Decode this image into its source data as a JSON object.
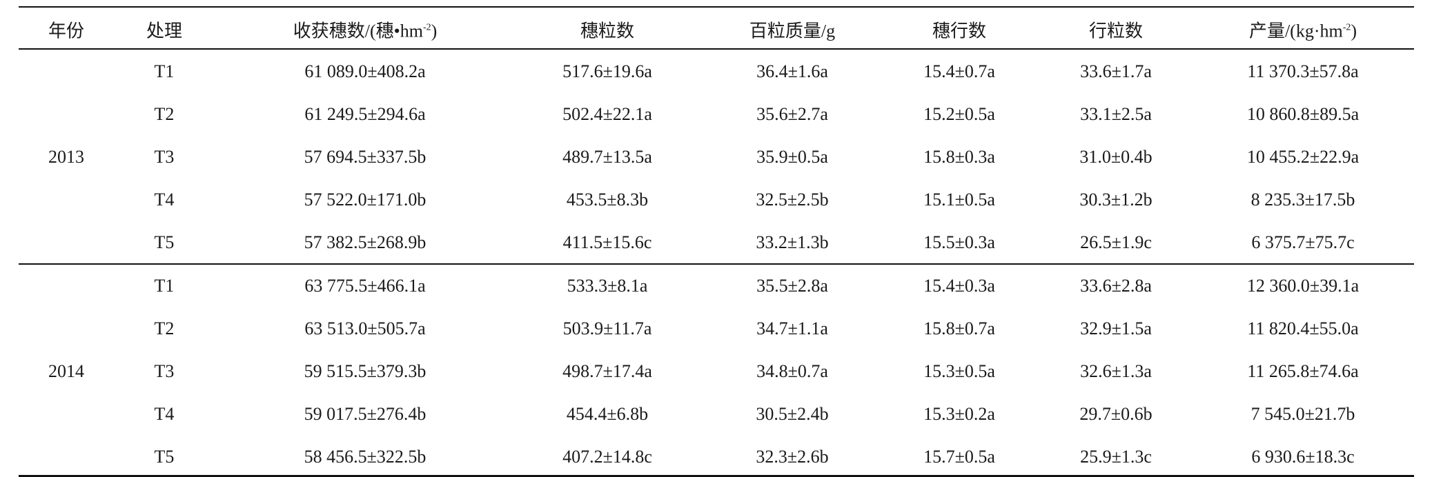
{
  "table": {
    "header": [
      "年份",
      "处理",
      [
        "收获穗数/(穗•hm",
        "-2",
        ")"
      ],
      "穗粒数",
      "百粒质量/g",
      "穗行数",
      "行粒数",
      [
        "产量/(kg·hm",
        "-2",
        ")"
      ]
    ],
    "groups": [
      {
        "year": "2013",
        "rows": [
          [
            "T1",
            "61 089.0±408.2a",
            "517.6±19.6a",
            "36.4±1.6a",
            "15.4±0.7a",
            "33.6±1.7a",
            "11 370.3±57.8a"
          ],
          [
            "T2",
            "61 249.5±294.6a",
            "502.4±22.1a",
            "35.6±2.7a",
            "15.2±0.5a",
            "33.1±2.5a",
            "10 860.8±89.5a"
          ],
          [
            "T3",
            "57 694.5±337.5b",
            "489.7±13.5a",
            "35.9±0.5a",
            "15.8±0.3a",
            "31.0±0.4b",
            "10 455.2±22.9a"
          ],
          [
            "T4",
            "57 522.0±171.0b",
            "453.5±8.3b",
            "32.5±2.5b",
            "15.1±0.5a",
            "30.3±1.2b",
            "8 235.3±17.5b"
          ],
          [
            "T5",
            "57 382.5±268.9b",
            "411.5±15.6c",
            "33.2±1.3b",
            "15.5±0.3a",
            "26.5±1.9c",
            "6 375.7±75.7c"
          ]
        ]
      },
      {
        "year": "2014",
        "rows": [
          [
            "T1",
            "63 775.5±466.1a",
            "533.3±8.1a",
            "35.5±2.8a",
            "15.4±0.3a",
            "33.6±2.8a",
            "12 360.0±39.1a"
          ],
          [
            "T2",
            "63 513.0±505.7a",
            "503.9±11.7a",
            "34.7±1.1a",
            "15.8±0.7a",
            "32.9±1.5a",
            "11 820.4±55.0a"
          ],
          [
            "T3",
            "59 515.5±379.3b",
            "498.7±17.4a",
            "34.8±0.7a",
            "15.3±0.5a",
            "32.6±1.3a",
            "11 265.8±74.6a"
          ],
          [
            "T4",
            "59 017.5±276.4b",
            "454.4±6.8b",
            "30.5±2.4b",
            "15.3±0.2a",
            "29.7±0.6b",
            "7 545.0±21.7b"
          ],
          [
            "T5",
            "58 456.5±322.5b",
            "407.2±14.8c",
            "32.3±2.6b",
            "15.7±0.5a",
            "25.9±1.3c",
            "6 930.6±18.3c"
          ]
        ]
      }
    ]
  }
}
